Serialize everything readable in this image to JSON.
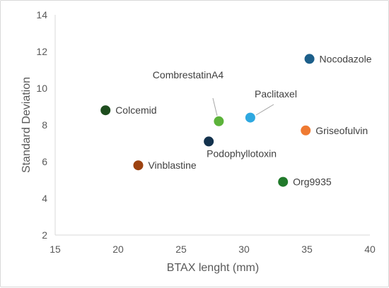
{
  "chart_data": {
    "type": "scatter",
    "title": "",
    "xlabel": "BTAX lenght (mm)",
    "ylabel": "Standard Deviation",
    "xlim": [
      15,
      40
    ],
    "ylim": [
      2,
      14
    ],
    "x_ticks": [
      "15",
      "20",
      "25",
      "30",
      "35",
      "40"
    ],
    "y_ticks": [
      "2",
      "4",
      "6",
      "8",
      "10",
      "12",
      "14"
    ],
    "grid": false,
    "legend": "none",
    "points": [
      {
        "label": "Colcemid",
        "x": 19.0,
        "y": 8.8,
        "color": "#1e4d1e"
      },
      {
        "label": "Vinblastine",
        "x": 21.6,
        "y": 5.8,
        "color": "#9c4210"
      },
      {
        "label": "CombrestatinA4",
        "x": 28.0,
        "y": 8.2,
        "color": "#5cb33a"
      },
      {
        "label": "Podophyllotoxin",
        "x": 27.2,
        "y": 7.1,
        "color": "#13324d"
      },
      {
        "label": "Paclitaxel",
        "x": 30.5,
        "y": 8.4,
        "color": "#2ea8e0"
      },
      {
        "label": "Nocodazole",
        "x": 35.2,
        "y": 11.6,
        "color": "#1c5f8a"
      },
      {
        "label": "Griseofulvin",
        "x": 34.9,
        "y": 7.7,
        "color": "#ef7a32"
      },
      {
        "label": "Org9935",
        "x": 33.1,
        "y": 4.9,
        "color": "#217a2b"
      }
    ]
  }
}
